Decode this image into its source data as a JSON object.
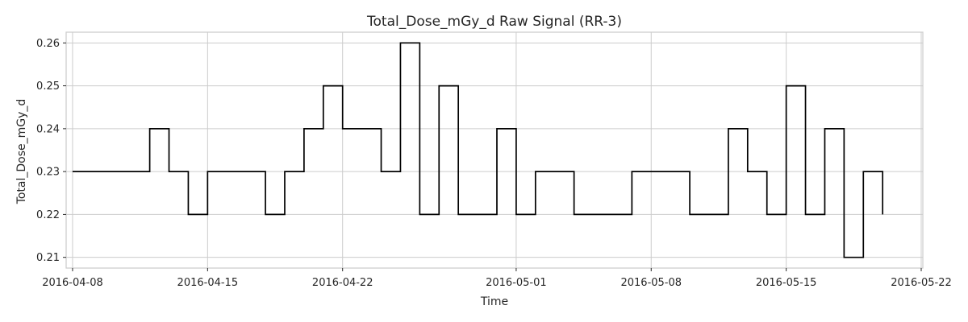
{
  "chart_data": {
    "type": "line",
    "step": "post",
    "title": "Total_Dose_mGy_d Raw Signal (RR-3)",
    "xlabel": "Time",
    "ylabel": "Total_Dose_mGy_d",
    "xlim": [
      "2016-04-07T16:00",
      "2016-05-22T02:00"
    ],
    "ylim": [
      0.2075,
      0.2625
    ],
    "x_ticks": [
      "2016-04-08",
      "2016-04-15",
      "2016-04-22",
      "2016-05-01",
      "2016-05-08",
      "2016-05-15",
      "2016-05-22"
    ],
    "y_ticks": [
      0.21,
      0.22,
      0.23,
      0.24,
      0.25,
      0.26
    ],
    "grid": true,
    "colors": {
      "line": "#000000",
      "grid": "#cccccc"
    },
    "series": [
      {
        "x": [
          "2016-04-08",
          "2016-04-09",
          "2016-04-10",
          "2016-04-11",
          "2016-04-12",
          "2016-04-13",
          "2016-04-14",
          "2016-04-15",
          "2016-04-16",
          "2016-04-17",
          "2016-04-18",
          "2016-04-19",
          "2016-04-20",
          "2016-04-21",
          "2016-04-22",
          "2016-04-23",
          "2016-04-24",
          "2016-04-25",
          "2016-04-26",
          "2016-04-27",
          "2016-04-28",
          "2016-04-29",
          "2016-04-30",
          "2016-05-01",
          "2016-05-02",
          "2016-05-03",
          "2016-05-04",
          "2016-05-05",
          "2016-05-06",
          "2016-05-07",
          "2016-05-08",
          "2016-05-09",
          "2016-05-10",
          "2016-05-11",
          "2016-05-12",
          "2016-05-13",
          "2016-05-14",
          "2016-05-15",
          "2016-05-16",
          "2016-05-17",
          "2016-05-18",
          "2016-05-19",
          "2016-05-20"
        ],
        "values": [
          0.23,
          0.23,
          0.23,
          0.23,
          0.24,
          0.23,
          0.22,
          0.23,
          0.23,
          0.23,
          0.22,
          0.23,
          0.24,
          0.25,
          0.24,
          0.24,
          0.23,
          0.26,
          0.22,
          0.25,
          0.22,
          0.22,
          0.24,
          0.22,
          0.23,
          0.23,
          0.22,
          0.22,
          0.22,
          0.23,
          0.23,
          0.23,
          0.22,
          0.22,
          0.24,
          0.23,
          0.22,
          0.25,
          0.22,
          0.24,
          0.21,
          0.23,
          0.22
        ]
      }
    ]
  }
}
